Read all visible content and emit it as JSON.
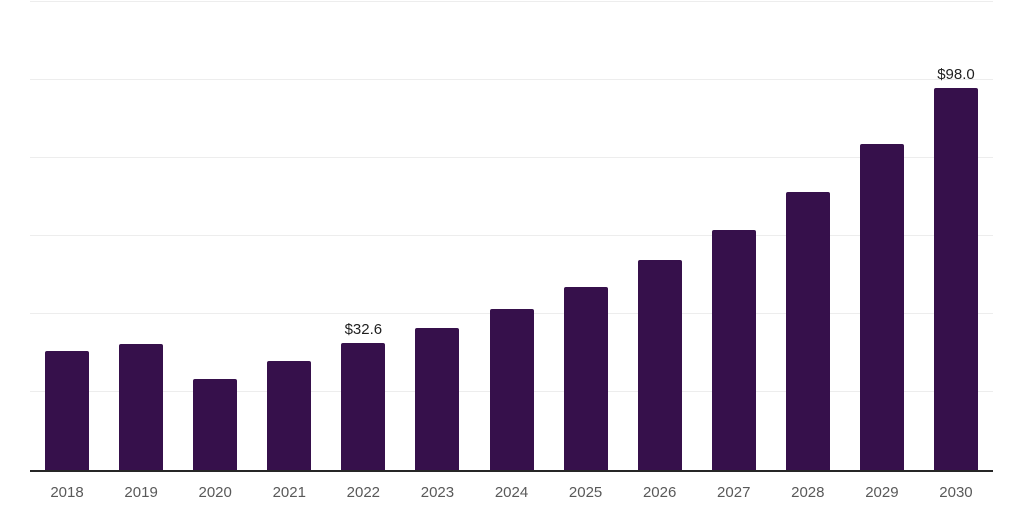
{
  "chart_data": {
    "type": "bar",
    "title": "",
    "xlabel": "",
    "ylabel": "",
    "categories": [
      "2018",
      "2019",
      "2020",
      "2021",
      "2022",
      "2023",
      "2024",
      "2025",
      "2026",
      "2027",
      "2028",
      "2029",
      "2030"
    ],
    "values": [
      30.5,
      32.4,
      23.3,
      27.9,
      32.6,
      36.4,
      41.2,
      47.0,
      53.9,
      61.6,
      71.4,
      83.5,
      98.0
    ],
    "bar_labels": [
      "",
      "",
      "",
      "",
      "$32.6",
      "",
      "",
      "",
      "",
      "",
      "",
      "",
      "$98.0"
    ],
    "ylim": [
      0,
      120
    ],
    "ytick_step": 20,
    "grid": true,
    "y_axis_labels_visible": false,
    "legend": "none",
    "colors": {
      "bar": "#36104b",
      "axis": "#262626",
      "gridline": "#ededed",
      "tick_label": "#595959",
      "data_label": "#1f1f1f",
      "background": "#ffffff"
    }
  }
}
